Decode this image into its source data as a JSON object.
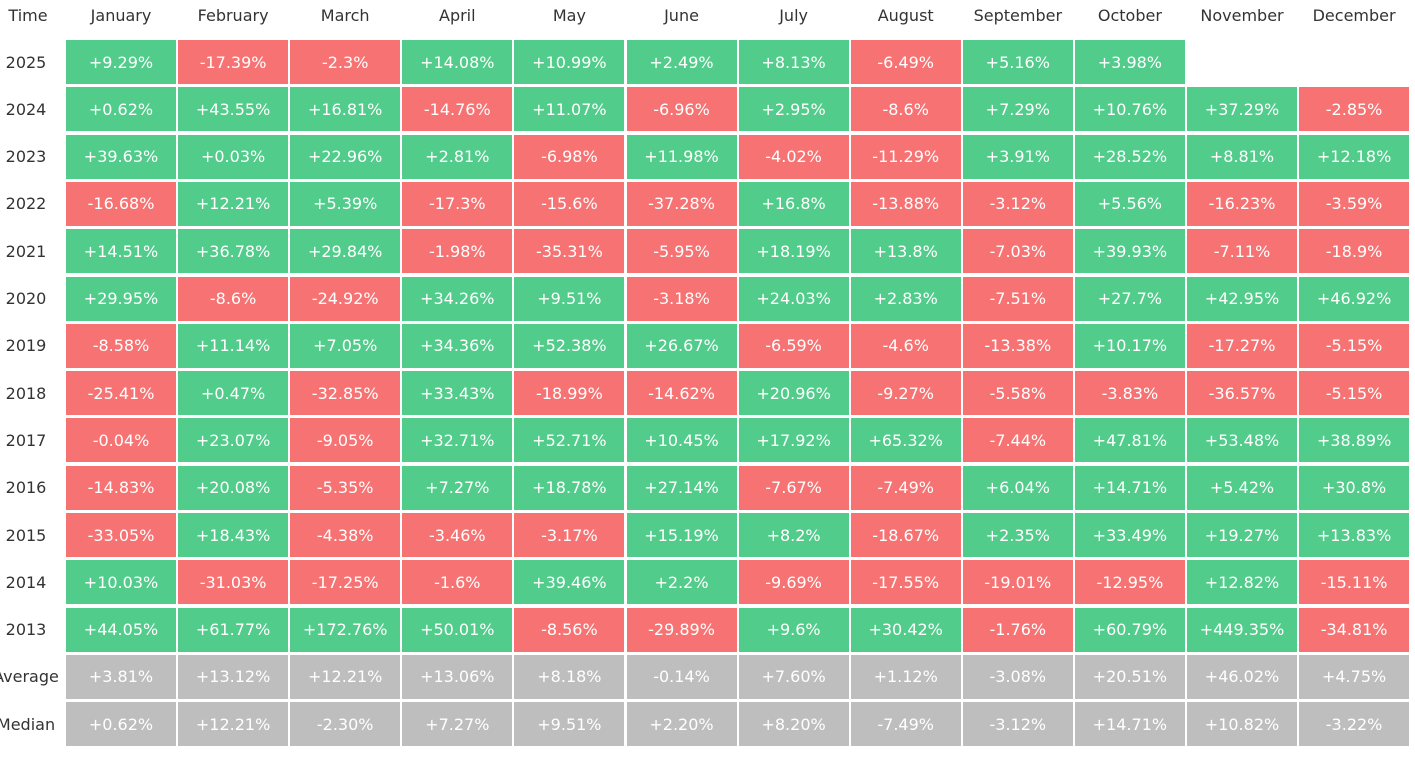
{
  "table": {
    "header": [
      "Time",
      "January",
      "February",
      "March",
      "April",
      "May",
      "June",
      "July",
      "August",
      "September",
      "October",
      "November",
      "December"
    ],
    "colors": {
      "positive": "#52cc8b",
      "negative": "#f77373",
      "summary": "#bebebe"
    },
    "rows": [
      {
        "label": "2025",
        "cells": [
          "+9.29%",
          "-17.39%",
          "-2.3%",
          "+14.08%",
          "+10.99%",
          "+2.49%",
          "+8.13%",
          "-6.49%",
          "+5.16%",
          "+3.98%"
        ]
      },
      {
        "label": "2024",
        "cells": [
          "+0.62%",
          "+43.55%",
          "+16.81%",
          "-14.76%",
          "+11.07%",
          "-6.96%",
          "+2.95%",
          "-8.6%",
          "+7.29%",
          "+10.76%",
          "+37.29%",
          "-2.85%"
        ]
      },
      {
        "label": "2023",
        "cells": [
          "+39.63%",
          "+0.03%",
          "+22.96%",
          "+2.81%",
          "-6.98%",
          "+11.98%",
          "-4.02%",
          "-11.29%",
          "+3.91%",
          "+28.52%",
          "+8.81%",
          "+12.18%"
        ]
      },
      {
        "label": "2022",
        "cells": [
          "-16.68%",
          "+12.21%",
          "+5.39%",
          "-17.3%",
          "-15.6%",
          "-37.28%",
          "+16.8%",
          "-13.88%",
          "-3.12%",
          "+5.56%",
          "-16.23%",
          "-3.59%"
        ]
      },
      {
        "label": "2021",
        "cells": [
          "+14.51%",
          "+36.78%",
          "+29.84%",
          "-1.98%",
          "-35.31%",
          "-5.95%",
          "+18.19%",
          "+13.8%",
          "-7.03%",
          "+39.93%",
          "-7.11%",
          "-18.9%"
        ]
      },
      {
        "label": "2020",
        "cells": [
          "+29.95%",
          "-8.6%",
          "-24.92%",
          "+34.26%",
          "+9.51%",
          "-3.18%",
          "+24.03%",
          "+2.83%",
          "-7.51%",
          "+27.7%",
          "+42.95%",
          "+46.92%"
        ]
      },
      {
        "label": "2019",
        "cells": [
          "-8.58%",
          "+11.14%",
          "+7.05%",
          "+34.36%",
          "+52.38%",
          "+26.67%",
          "-6.59%",
          "-4.6%",
          "-13.38%",
          "+10.17%",
          "-17.27%",
          "-5.15%"
        ]
      },
      {
        "label": "2018",
        "cells": [
          "-25.41%",
          "+0.47%",
          "-32.85%",
          "+33.43%",
          "-18.99%",
          "-14.62%",
          "+20.96%",
          "-9.27%",
          "-5.58%",
          "-3.83%",
          "-36.57%",
          "-5.15%"
        ]
      },
      {
        "label": "2017",
        "cells": [
          "-0.04%",
          "+23.07%",
          "-9.05%",
          "+32.71%",
          "+52.71%",
          "+10.45%",
          "+17.92%",
          "+65.32%",
          "-7.44%",
          "+47.81%",
          "+53.48%",
          "+38.89%"
        ]
      },
      {
        "label": "2016",
        "cells": [
          "-14.83%",
          "+20.08%",
          "-5.35%",
          "+7.27%",
          "+18.78%",
          "+27.14%",
          "-7.67%",
          "-7.49%",
          "+6.04%",
          "+14.71%",
          "+5.42%",
          "+30.8%"
        ]
      },
      {
        "label": "2015",
        "cells": [
          "-33.05%",
          "+18.43%",
          "-4.38%",
          "-3.46%",
          "-3.17%",
          "+15.19%",
          "+8.2%",
          "-18.67%",
          "+2.35%",
          "+33.49%",
          "+19.27%",
          "+13.83%"
        ]
      },
      {
        "label": "2014",
        "cells": [
          "+10.03%",
          "-31.03%",
          "-17.25%",
          "-1.6%",
          "+39.46%",
          "+2.2%",
          "-9.69%",
          "-17.55%",
          "-19.01%",
          "-12.95%",
          "+12.82%",
          "-15.11%"
        ]
      },
      {
        "label": "2013",
        "cells": [
          "+44.05%",
          "+61.77%",
          "+172.76%",
          "+50.01%",
          "-8.56%",
          "-29.89%",
          "+9.6%",
          "+30.42%",
          "-1.76%",
          "+60.79%",
          "+449.35%",
          "-34.81%"
        ]
      },
      {
        "label": "Average",
        "summary": true,
        "cells": [
          "+3.81%",
          "+13.12%",
          "+12.21%",
          "+13.06%",
          "+8.18%",
          "-0.14%",
          "+7.60%",
          "+1.12%",
          "-3.08%",
          "+20.51%",
          "+46.02%",
          "+4.75%"
        ]
      },
      {
        "label": "Median",
        "summary": true,
        "cells": [
          "+0.62%",
          "+12.21%",
          "-2.30%",
          "+7.27%",
          "+9.51%",
          "+2.20%",
          "+8.20%",
          "-7.49%",
          "-3.12%",
          "+14.71%",
          "+10.82%",
          "-3.22%"
        ]
      }
    ]
  }
}
